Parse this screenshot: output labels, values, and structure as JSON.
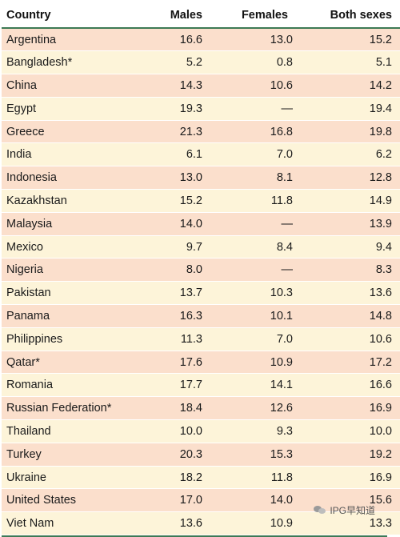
{
  "table": {
    "headers": [
      "Country",
      "Males",
      "Females",
      "Both sexes"
    ],
    "rows": [
      {
        "country": "Argentina",
        "males": "16.6",
        "females": "13.0",
        "both": "15.2"
      },
      {
        "country": "Bangladesh*",
        "males": "5.2",
        "females": "0.8",
        "both": "5.1"
      },
      {
        "country": "China",
        "males": "14.3",
        "females": "10.6",
        "both": "14.2"
      },
      {
        "country": "Egypt",
        "males": "19.3",
        "females": "—",
        "both": "19.4"
      },
      {
        "country": "Greece",
        "males": "21.3",
        "females": "16.8",
        "both": "19.8"
      },
      {
        "country": "India",
        "males": "6.1",
        "females": "7.0",
        "both": "6.2"
      },
      {
        "country": "Indonesia",
        "males": "13.0",
        "females": "8.1",
        "both": "12.8"
      },
      {
        "country": "Kazakhstan",
        "males": "15.2",
        "females": "11.8",
        "both": "14.9"
      },
      {
        "country": "Malaysia",
        "males": "14.0",
        "females": "—",
        "both": "13.9"
      },
      {
        "country": "Mexico",
        "males": "9.7",
        "females": "8.4",
        "both": "9.4"
      },
      {
        "country": "Nigeria",
        "males": "8.0",
        "females": "—",
        "both": "8.3"
      },
      {
        "country": "Pakistan",
        "males": "13.7",
        "females": "10.3",
        "both": "13.6"
      },
      {
        "country": "Panama",
        "males": "16.3",
        "females": "10.1",
        "both": "14.8"
      },
      {
        "country": "Philippines",
        "males": "11.3",
        "females": "7.0",
        "both": "10.6"
      },
      {
        "country": "Qatar*",
        "males": "17.6",
        "females": "10.9",
        "both": "17.2"
      },
      {
        "country": "Romania",
        "males": "17.7",
        "females": "14.1",
        "both": "16.6"
      },
      {
        "country": "Russian Federation*",
        "males": "18.4",
        "females": "12.6",
        "both": "16.9"
      },
      {
        "country": "Thailand",
        "males": "10.0",
        "females": "9.3",
        "both": "10.0"
      },
      {
        "country": "Turkey",
        "males": "20.3",
        "females": "15.3",
        "both": "19.2"
      },
      {
        "country": "Ukraine",
        "males": "18.2",
        "females": "11.8",
        "both": "16.9"
      },
      {
        "country": "United States",
        "males": "17.0",
        "females": "14.0",
        "both": "15.6"
      },
      {
        "country": "Viet Nam",
        "males": "13.6",
        "females": "10.9",
        "both": "13.3"
      }
    ]
  },
  "colors": {
    "row_odd": "#fbdfcc",
    "row_even": "#fdf4d9",
    "rule": "#3d7a55"
  },
  "watermark": {
    "text": "IPG早知道",
    "icon": "wechat-icon"
  }
}
